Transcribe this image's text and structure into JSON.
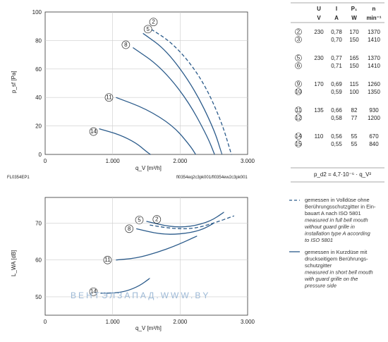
{
  "top_chart": {
    "ylabel": "p_sf [Pa]",
    "xlabel": "q_V [m³/h]",
    "left_code": "FL0354EP1",
    "right_code": "fl0354eq2c3pk001/fl0354ew2c3pk001",
    "yticks": [
      "0",
      "20",
      "40",
      "60",
      "80",
      "100"
    ],
    "xticks": [
      "0",
      "1.000",
      "2.000",
      "3.000"
    ]
  },
  "bottom_chart": {
    "ylabel": "L_WA [dB]",
    "xlabel": "q_V [m³/h]",
    "yticks": [
      "50",
      "60",
      "70"
    ],
    "xticks": [
      "0",
      "1.000",
      "2.000",
      "3.000"
    ]
  },
  "chart_data": [
    {
      "type": "line",
      "title": "",
      "xlabel": "q_V [m³/h]",
      "ylabel": "p_sf [Pa]",
      "xlim": [
        0,
        3000
      ],
      "ylim": [
        0,
        100
      ],
      "grid": true,
      "series": [
        {
          "name": "2",
          "style": "dashed",
          "x": [
            1500,
            1900,
            2300,
            2600,
            2760
          ],
          "y": [
            90,
            78,
            55,
            25,
            0
          ]
        },
        {
          "name": "5",
          "style": "solid",
          "x": [
            1450,
            1800,
            2200,
            2500,
            2620
          ],
          "y": [
            85,
            73,
            47,
            18,
            0
          ]
        },
        {
          "name": "8",
          "style": "solid",
          "x": [
            1300,
            1700,
            2100,
            2400,
            2510
          ],
          "y": [
            75,
            62,
            39,
            13,
            0
          ]
        },
        {
          "name": "11",
          "style": "solid",
          "x": [
            1050,
            1500,
            1900,
            2150,
            2230
          ],
          "y": [
            40,
            32,
            20,
            6,
            0
          ]
        },
        {
          "name": "14",
          "style": "solid",
          "x": [
            800,
            1100,
            1350,
            1500,
            1560
          ],
          "y": [
            18,
            14,
            8,
            2,
            0
          ]
        }
      ]
    },
    {
      "type": "line",
      "title": "",
      "xlabel": "q_V [m³/h]",
      "ylabel": "L_WA [dB]",
      "xlim": [
        0,
        3000
      ],
      "ylim": [
        45,
        77
      ],
      "grid": true,
      "series": [
        {
          "name": "2",
          "style": "dashed",
          "x": [
            1550,
            1900,
            2200,
            2500,
            2800
          ],
          "y": [
            69.5,
            68.5,
            68.5,
            70,
            72
          ]
        },
        {
          "name": "5",
          "style": "solid",
          "x": [
            1500,
            1850,
            2150,
            2450,
            2650
          ],
          "y": [
            70.5,
            69,
            69,
            70.5,
            73
          ]
        },
        {
          "name": "8",
          "style": "solid",
          "x": [
            1350,
            1700,
            2000,
            2300,
            2500
          ],
          "y": [
            68.5,
            67,
            67,
            68,
            70
          ]
        },
        {
          "name": "11",
          "style": "solid",
          "x": [
            1050,
            1350,
            1650,
            1950,
            2250
          ],
          "y": [
            60,
            60.5,
            62,
            64,
            66.5
          ]
        },
        {
          "name": "14",
          "style": "solid",
          "x": [
            820,
            1020,
            1200,
            1400,
            1550
          ],
          "y": [
            51,
            51,
            51.5,
            53,
            55
          ]
        }
      ]
    }
  ],
  "table": {
    "headers": [
      "U",
      "I",
      "P₁",
      "n"
    ],
    "units": [
      "V",
      "A",
      "W",
      "min⁻¹"
    ],
    "rows": [
      {
        "curve": "2",
        "U": "230",
        "I": "0,78",
        "P": "170",
        "n": "1370"
      },
      {
        "curve": "3",
        "U": "",
        "I": "0,70",
        "P": "150",
        "n": "1410"
      },
      {
        "curve": "5",
        "U": "230",
        "I": "0,77",
        "P": "165",
        "n": "1370"
      },
      {
        "curve": "6",
        "U": "",
        "I": "0,71",
        "P": "150",
        "n": "1410"
      },
      {
        "curve": "9",
        "U": "170",
        "I": "0,69",
        "P": "115",
        "n": "1260"
      },
      {
        "curve": "10",
        "U": "",
        "I": "0,59",
        "P": "100",
        "n": "1350"
      },
      {
        "curve": "11",
        "U": "135",
        "I": "0,66",
        "P": "82",
        "n": "930"
      },
      {
        "curve": "12",
        "U": "",
        "I": "0,58",
        "P": "77",
        "n": "1200"
      },
      {
        "curve": "14",
        "U": "110",
        "I": "0,56",
        "P": "55",
        "n": "670"
      },
      {
        "curve": "15",
        "U": "",
        "I": "0,55",
        "P": "55",
        "n": "840"
      }
    ],
    "formula": "p_d2 = 4,7·10⁻⁶ · q_V²"
  },
  "legend": {
    "dashed": {
      "lines": [
        "gemessen in Volldüse ohne",
        "Berührungsschutzgitter in Ein-",
        "bauart A nach ISO 5801"
      ],
      "italic": [
        "measured in full bell mouth",
        "without guard grille in",
        "installation type A according",
        "to ISO 5801"
      ]
    },
    "solid": {
      "lines": [
        "gemessen in Kurzdüse mit",
        "druckseitigem Berührungs-",
        "schutzgitter"
      ],
      "italic": [
        "measured in short bell mouth",
        "with guard grille on the",
        "pressure side"
      ]
    }
  },
  "watermark": "ВЕНТЭЛЗАПАД.WWW.BY",
  "colors": {
    "curve": "#2a5a8a",
    "grid": "#cccccc",
    "axis": "#333333"
  }
}
